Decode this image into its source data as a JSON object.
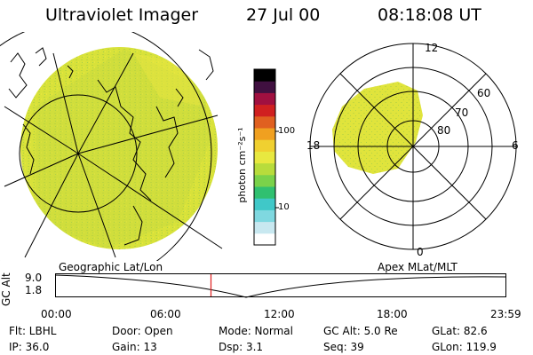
{
  "header": {
    "title": "Ultraviolet Imager",
    "date": "27 Jul 00",
    "time": "08:18:08 UT"
  },
  "colorbar": {
    "label": "photon cm⁻²s⁻¹",
    "ticks": [
      "100",
      "10"
    ],
    "colors": [
      "#ffffff",
      "#c8e8f0",
      "#7fd8e0",
      "#40c8c8",
      "#30c070",
      "#7ad24a",
      "#b8dc3c",
      "#e8e840",
      "#f0d030",
      "#f0a020",
      "#e06020",
      "#d02020",
      "#a01040",
      "#401040",
      "#000000"
    ]
  },
  "polar_plot": {
    "mlt_labels": [
      "12",
      "18",
      "6",
      "0"
    ],
    "lat_labels": [
      "60",
      "70",
      "80"
    ]
  },
  "timeline": {
    "left_label": "Geographic Lat/Lon",
    "right_label": "Apex MLat/MLT",
    "y_axis_label": "GC Alt",
    "y_ticks": [
      "9.0",
      "1.8"
    ],
    "x_ticks": [
      "00:00",
      "06:00",
      "12:00",
      "18:00",
      "23:59"
    ],
    "marker_time_hours": 8.3
  },
  "status": {
    "row1": {
      "flt": "Flt: LBHL",
      "door": "Door: Open",
      "mode": "Mode: Normal",
      "gcalt": "GC Alt: 5.0 Re",
      "glat": "GLat:  82.6"
    },
    "row2": {
      "ip": "IP: 36.0",
      "gain": "Gain: 13",
      "dsp": "Dsp:    3.1",
      "seq": "Seq: 39",
      "glon": "GLon: 119.9"
    }
  }
}
